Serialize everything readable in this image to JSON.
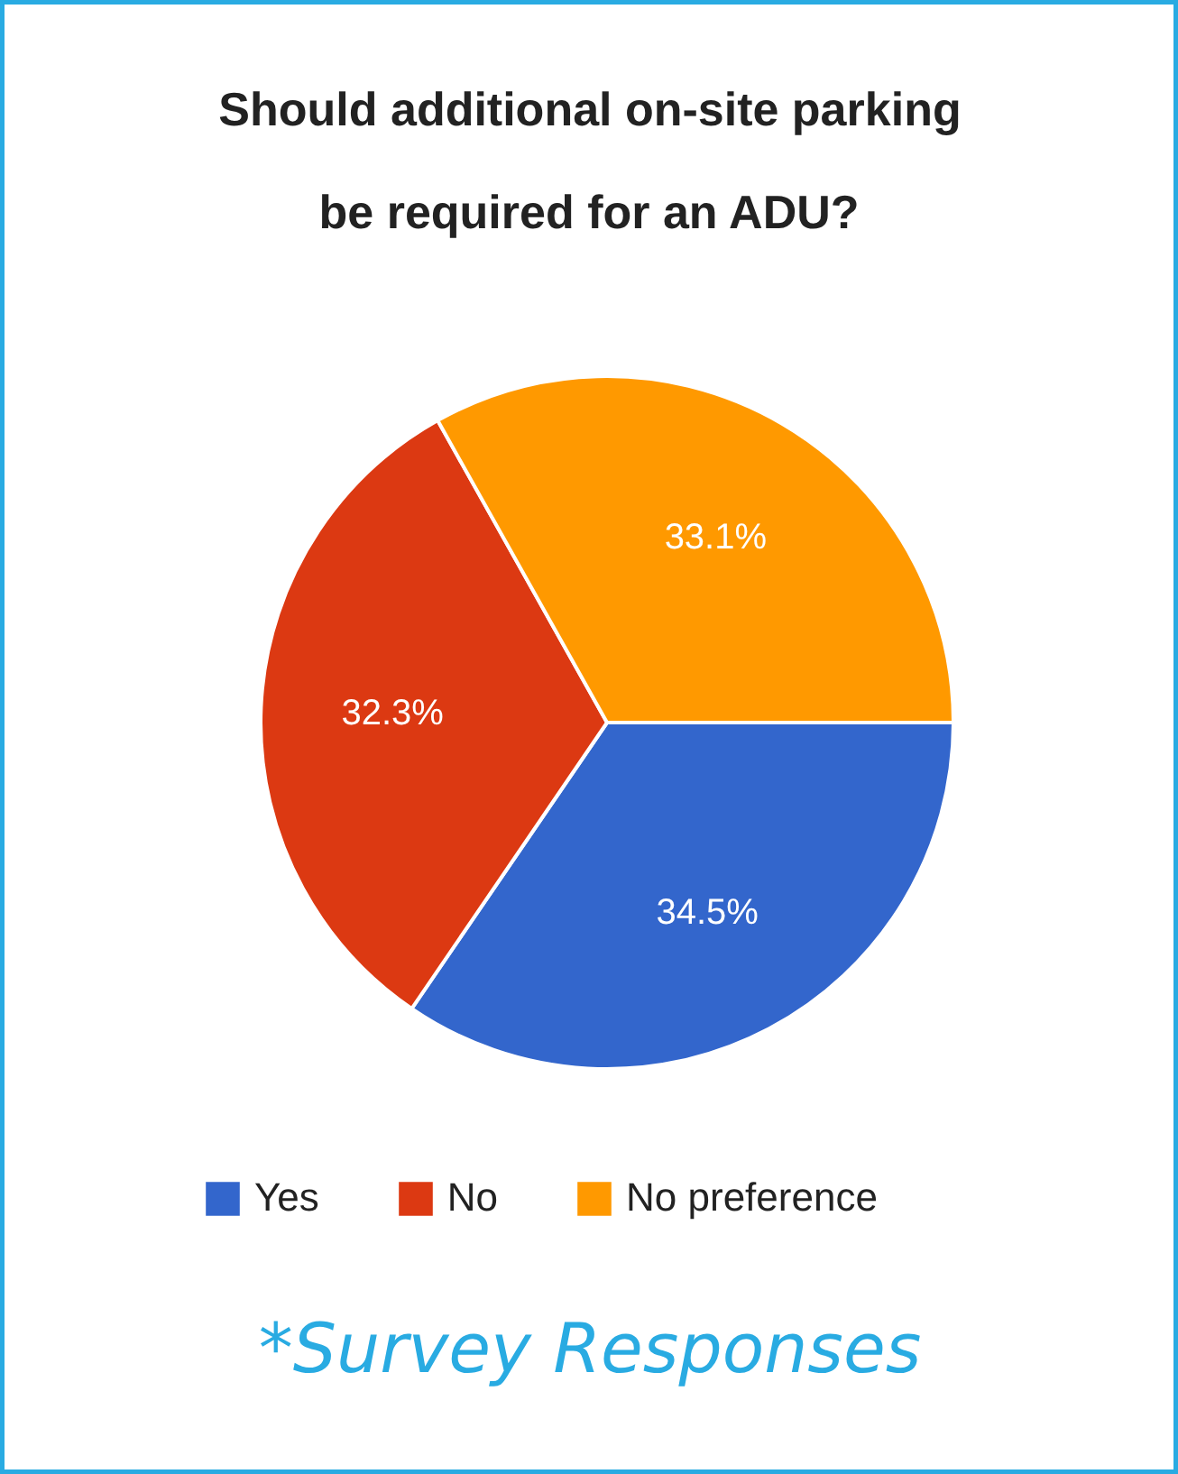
{
  "chart_data": {
    "type": "pie",
    "title": "Should additional on-site parking be required for an ADU?",
    "categories": [
      "Yes",
      "No",
      "No preference"
    ],
    "values": [
      34.5,
      32.3,
      33.1
    ],
    "colors": [
      "#3366cc",
      "#dc3912",
      "#ff9900"
    ],
    "value_labels": [
      "34.5%",
      "32.3%",
      "33.1%"
    ],
    "legend": "bottom",
    "annotations": [
      "*Survey Responses"
    ]
  }
}
